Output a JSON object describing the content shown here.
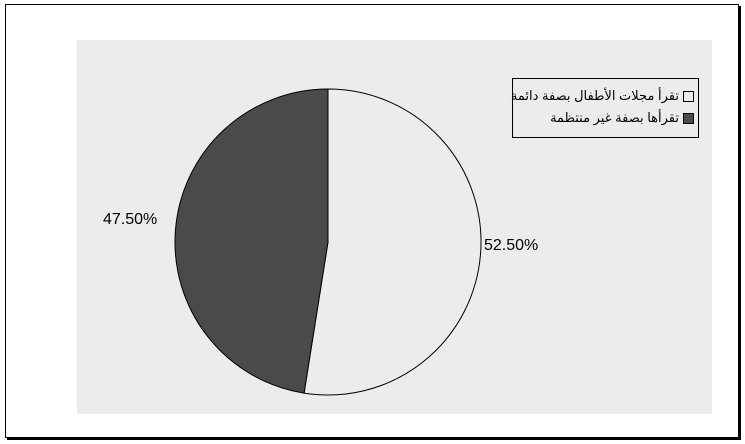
{
  "chart_data": {
    "type": "pie",
    "title": "",
    "slices": [
      {
        "label": "تقرأ مجلات الأطفال بصفة دائمة",
        "value": 52.5,
        "display": "52.50%",
        "color": "#ececec"
      },
      {
        "label": "تقرأها بصفة غير منتظمة",
        "value": 47.5,
        "display": "47.50%",
        "color": "#4a4a4a"
      }
    ],
    "start_angle_deg": 0,
    "direction": "clockwise",
    "legend_position": "top-right",
    "plot_background": "#ececec"
  }
}
